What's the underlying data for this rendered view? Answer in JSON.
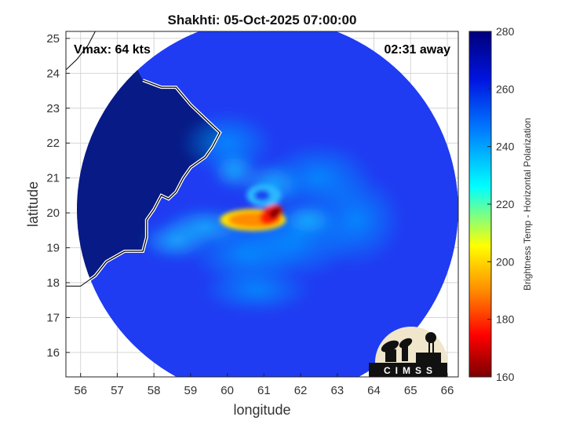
{
  "chart_data": {
    "type": "heatmap",
    "title": "Shakhti: 05-Oct-2025 07:00:00",
    "xlabel": "longitude",
    "ylabel": "latitude",
    "xlim": [
      55.6,
      66.3
    ],
    "ylim": [
      15.3,
      25.2
    ],
    "x_ticks": [
      56,
      57,
      58,
      59,
      60,
      61,
      62,
      63,
      64,
      65,
      66
    ],
    "y_ticks": [
      16,
      17,
      18,
      19,
      20,
      21,
      22,
      23,
      24,
      25
    ],
    "grid": true,
    "annotations": {
      "vmax": "Vmax: 64 kts",
      "time_away": "02:31 away"
    },
    "swath": {
      "center": [
        61.1,
        20.1
      ],
      "radius_deg": 5.2
    },
    "storm_center": [
      60.9,
      20.4
    ],
    "colorbar": {
      "label": "Brightness Temp - Horizontal Polarization",
      "range": [
        160,
        280
      ],
      "ticks": [
        160,
        180,
        200,
        220,
        240,
        260,
        280
      ],
      "colors": [
        "#7a0000",
        "#ff0000",
        "#ffa500",
        "#ffff00",
        "#00ffff",
        "#0040ff",
        "#00007a"
      ]
    },
    "logo_text": "CIMSS"
  }
}
